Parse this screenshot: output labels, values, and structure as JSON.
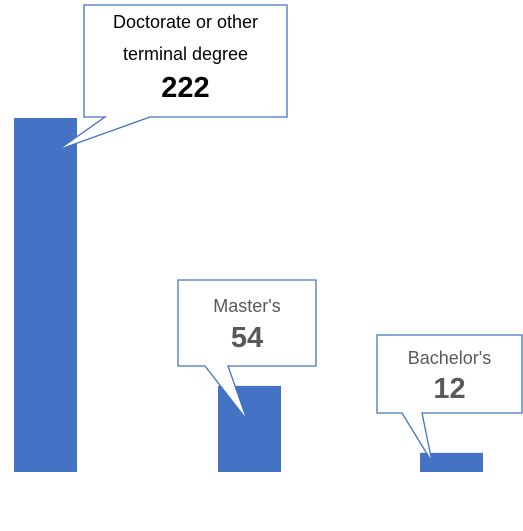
{
  "chart_data": {
    "type": "bar",
    "categories": [
      "Doctorate or other terminal degree",
      "Master's",
      "Bachelor's"
    ],
    "values": [
      222,
      54,
      12
    ],
    "color": "#4472c4"
  }
}
